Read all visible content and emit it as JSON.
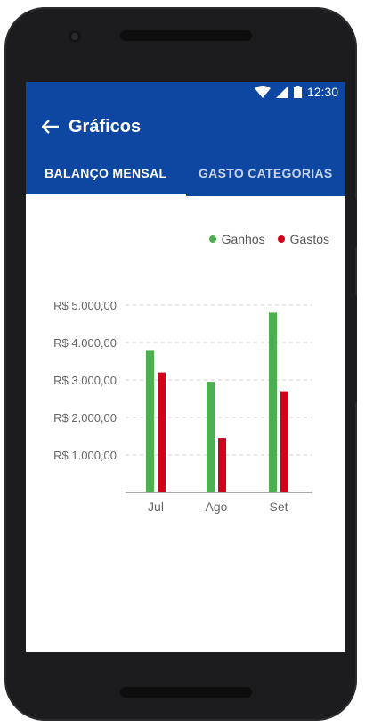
{
  "status": {
    "time": "12:30"
  },
  "appbar": {
    "title": "Gráficos"
  },
  "tabs": [
    {
      "label": "BALANÇO MENSAL",
      "active": true
    },
    {
      "label": "GASTO CATEGORIAS",
      "active": false
    }
  ],
  "legend": [
    {
      "label": "Ganhos",
      "color": "#4caf50"
    },
    {
      "label": "Gastos",
      "color": "#d0021b"
    }
  ],
  "chart_data": {
    "type": "bar",
    "categories": [
      "Jul",
      "Ago",
      "Set"
    ],
    "series": [
      {
        "name": "Ganhos",
        "color": "#4caf50",
        "values": [
          3800,
          2950,
          4800
        ]
      },
      {
        "name": "Gastos",
        "color": "#d0021b",
        "values": [
          3200,
          1450,
          2700
        ]
      }
    ],
    "yticks": [
      1000,
      2000,
      3000,
      4000,
      5000
    ],
    "ytick_labels": [
      "R$ 1.000,00",
      "R$ 2.000,00",
      "R$ 3.000,00",
      "R$ 4.000,00",
      "R$ 5.000,00"
    ],
    "ylim": [
      0,
      5000
    ],
    "grid": true,
    "legend_position": "top-right"
  }
}
